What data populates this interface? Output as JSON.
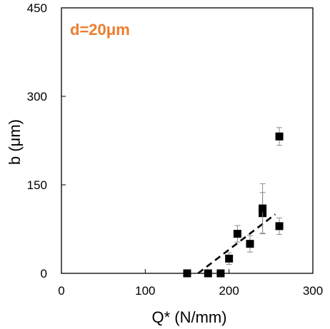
{
  "chart_data": {
    "type": "scatter",
    "xlabel": "Q* (N/mm)",
    "ylabel": "b (μm)",
    "xlim": [
      0,
      300
    ],
    "ylim": [
      0,
      450
    ],
    "xticks": [
      "0",
      "100",
      "200",
      "300"
    ],
    "yticks": [
      "0",
      "150",
      "300",
      "450"
    ],
    "annotation": "d=20μm",
    "annotation_color": "#ED7D31",
    "marker_color": "#000000",
    "points": [
      {
        "x": 150,
        "y": 0
      },
      {
        "x": 175,
        "y": 0
      },
      {
        "x": 190,
        "y": 0
      },
      {
        "x": 200,
        "y": 25,
        "err": 10
      },
      {
        "x": 210,
        "y": 67,
        "err": 14
      },
      {
        "x": 225,
        "y": 50,
        "err": 14
      },
      {
        "x": 240,
        "y": 102,
        "err": 35
      },
      {
        "x": 240,
        "y": 110,
        "err": 42
      },
      {
        "x": 260,
        "y": 80,
        "err": 14
      },
      {
        "x": 260,
        "y": 232,
        "err": 15
      }
    ],
    "trendline": {
      "style": "dashed",
      "x": [
        163,
        255
      ],
      "y": [
        0,
        100
      ]
    },
    "grid": false,
    "legend": "none"
  }
}
